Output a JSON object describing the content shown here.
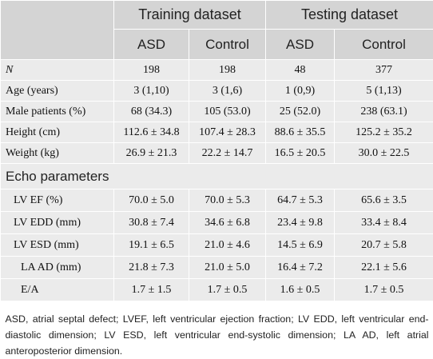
{
  "header": {
    "groups": [
      "Training dataset",
      "Testing dataset"
    ],
    "subcolumns": [
      "ASD",
      "Control",
      "ASD",
      "Control"
    ]
  },
  "rows": [
    {
      "label": "N",
      "values": [
        "198",
        "198",
        "48",
        "377"
      ]
    },
    {
      "label": "Age (years)",
      "values": [
        "3 (1,10)",
        "3 (1,6)",
        "1 (0,9)",
        "5 (1,13)"
      ]
    },
    {
      "label": "Male patients (%)",
      "values": [
        "68 (34.3)",
        "105 (53.0)",
        "25 (52.0)",
        "238 (63.1)"
      ]
    },
    {
      "label": "Height (cm)",
      "values": [
        "112.6 ± 34.8",
        "107.4 ± 28.3",
        "88.6 ± 35.5",
        "125.2 ± 35.2"
      ]
    },
    {
      "label": "Weight (kg)",
      "values": [
        "26.9 ± 21.3",
        "22.2 ± 14.7",
        "16.5 ± 20.5",
        "30.0 ± 22.5"
      ]
    }
  ],
  "section_title": "Echo parameters",
  "echo_rows": [
    {
      "label": "LV EF (%)",
      "values": [
        "70.0 ± 5.0",
        "70.0 ± 5.3",
        "64.7 ± 5.3",
        "65.6 ± 3.5"
      ]
    },
    {
      "label": "LV EDD (mm)",
      "values": [
        "30.8 ± 7.4",
        "34.6 ± 6.8",
        "23.4 ± 9.8",
        "33.4 ± 8.4"
      ]
    },
    {
      "label": "LV ESD (mm)",
      "values": [
        "19.1 ± 6.5",
        "21.0 ± 4.6",
        "14.5 ± 6.9",
        "20.7 ± 5.8"
      ]
    },
    {
      "label": "LA AD (mm)",
      "values": [
        "21.8 ± 7.3",
        "21.0 ± 5.0",
        "16.4 ± 7.2",
        "22.1 ± 5.6"
      ]
    },
    {
      "label": "E/A",
      "values": [
        "1.7 ± 1.5",
        "1.7 ± 0.5",
        "1.6 ± 0.5",
        "1.7 ± 0.5"
      ]
    }
  ],
  "footnote": "ASD, atrial septal defect; LVEF, left ventricular ejection fraction; LV EDD, left ventricular end-diastolic dimension; LV ESD, left ventricular end-systolic dimension; LA AD, left atrial anteroposterior dimension."
}
